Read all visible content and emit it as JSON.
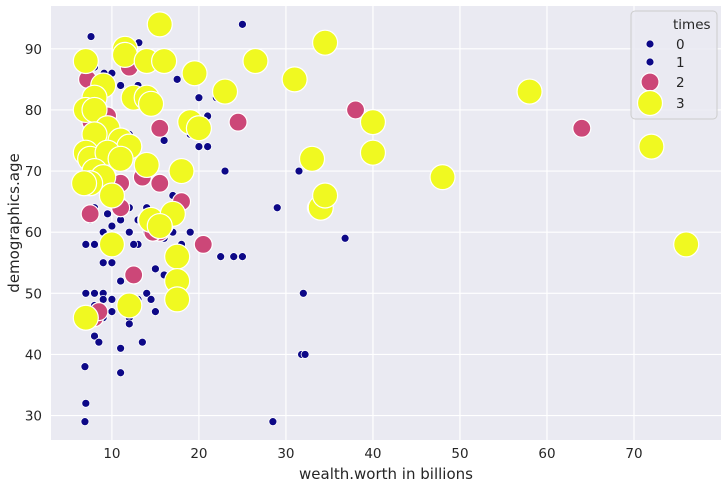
{
  "chart_data": {
    "type": "scatter",
    "xlabel": "wealth.worth in billions",
    "ylabel": "demographics.age",
    "xlim": [
      3,
      80
    ],
    "ylim": [
      26,
      97
    ],
    "xticks": [
      10,
      20,
      30,
      40,
      50,
      60,
      70
    ],
    "yticks": [
      30,
      40,
      50,
      60,
      70,
      80,
      90
    ],
    "grid": true,
    "legend": {
      "title": "times",
      "placement": "top-right",
      "entries": [
        "0",
        "1",
        "2",
        "3"
      ]
    },
    "series": [
      {
        "name": "0",
        "color": "#0d0887",
        "points": [
          [
            6.9,
            29
          ],
          [
            7,
            32
          ],
          [
            6.9,
            38
          ],
          [
            6.9,
            47
          ],
          [
            7.5,
            63
          ],
          [
            9.5,
            63
          ],
          [
            12,
            46
          ]
        ]
      },
      {
        "name": "1",
        "color": "#0d0887",
        "points": [
          [
            7.6,
            92
          ],
          [
            8,
            87
          ],
          [
            8.6,
            85
          ],
          [
            9.1,
            86
          ],
          [
            10,
            86
          ],
          [
            12,
            88
          ],
          [
            12.8,
            89
          ],
          [
            13.1,
            91
          ],
          [
            14,
            89
          ],
          [
            25,
            94
          ],
          [
            11,
            84
          ],
          [
            13,
            84
          ],
          [
            8.5,
            78
          ],
          [
            10,
            76
          ],
          [
            12,
            76
          ],
          [
            13,
            74
          ],
          [
            11,
            74
          ],
          [
            9,
            74
          ],
          [
            7,
            76
          ],
          [
            7.5,
            73
          ],
          [
            8,
            71
          ],
          [
            9,
            70
          ],
          [
            10,
            71
          ],
          [
            11,
            72
          ],
          [
            14,
            72
          ],
          [
            15,
            71
          ],
          [
            15.6,
            68
          ],
          [
            17,
            66
          ],
          [
            16,
            75
          ],
          [
            19,
            76
          ],
          [
            20,
            74
          ],
          [
            21,
            74
          ],
          [
            22,
            82
          ],
          [
            20,
            82
          ],
          [
            17.5,
            85
          ],
          [
            21,
            79
          ],
          [
            7,
            69
          ],
          [
            8,
            67
          ],
          [
            9,
            66
          ],
          [
            10,
            65
          ],
          [
            11,
            64
          ],
          [
            12,
            64
          ],
          [
            13,
            62
          ],
          [
            14,
            60
          ],
          [
            14,
            64
          ],
          [
            16,
            59
          ],
          [
            17,
            60
          ],
          [
            18,
            58
          ],
          [
            19,
            60
          ],
          [
            15,
            62
          ],
          [
            13,
            58
          ],
          [
            12,
            60
          ],
          [
            11,
            62
          ],
          [
            10,
            61
          ],
          [
            9,
            60
          ],
          [
            8,
            58
          ],
          [
            7,
            58
          ],
          [
            7.5,
            62
          ],
          [
            7,
            63
          ],
          [
            8,
            64
          ],
          [
            9,
            55
          ],
          [
            10,
            55
          ],
          [
            11,
            52
          ],
          [
            9,
            50
          ],
          [
            8,
            50
          ],
          [
            7,
            50
          ],
          [
            8,
            48
          ],
          [
            9,
            49
          ],
          [
            10,
            49
          ],
          [
            11,
            48
          ],
          [
            10,
            47
          ],
          [
            9,
            46
          ],
          [
            7,
            45
          ],
          [
            8,
            43
          ],
          [
            8.5,
            42
          ],
          [
            11,
            41
          ],
          [
            11,
            37
          ],
          [
            12,
            45
          ],
          [
            13,
            49
          ],
          [
            14,
            50
          ],
          [
            14.5,
            49
          ],
          [
            13.5,
            42
          ],
          [
            15,
            47
          ],
          [
            18,
            56
          ],
          [
            16,
            53
          ],
          [
            22.5,
            56
          ],
          [
            25,
            56
          ],
          [
            24,
            56
          ],
          [
            31.5,
            70
          ],
          [
            29,
            64
          ],
          [
            32,
            50
          ],
          [
            31.8,
            40
          ],
          [
            32.2,
            40
          ],
          [
            36.8,
            59
          ],
          [
            28.5,
            29
          ],
          [
            23,
            70
          ],
          [
            15,
            54
          ],
          [
            13,
            58
          ],
          [
            12.5,
            58
          ]
        ]
      },
      {
        "name": "2",
        "color": "#cc4778",
        "points": [
          [
            7.2,
            85
          ],
          [
            12,
            87
          ],
          [
            7.8,
            82
          ],
          [
            8.5,
            80
          ],
          [
            7.6,
            78
          ],
          [
            9.5,
            79
          ],
          [
            10,
            76
          ],
          [
            9,
            75
          ],
          [
            8,
            73
          ],
          [
            8.6,
            71
          ],
          [
            11,
            72
          ],
          [
            9.5,
            69
          ],
          [
            11,
            68
          ],
          [
            13.5,
            69
          ],
          [
            15.5,
            68
          ],
          [
            15.5,
            77
          ],
          [
            10.5,
            65
          ],
          [
            11,
            64
          ],
          [
            14,
            62
          ],
          [
            15.5,
            60
          ],
          [
            16,
            61
          ],
          [
            14.7,
            60
          ],
          [
            18,
            65
          ],
          [
            20.5,
            58
          ],
          [
            24.5,
            78
          ],
          [
            38,
            80
          ],
          [
            64,
            77
          ],
          [
            12.5,
            53
          ],
          [
            8,
            46
          ],
          [
            8.5,
            47
          ],
          [
            7.5,
            63
          ],
          [
            33.5,
            64
          ]
        ]
      },
      {
        "name": "3",
        "color": "#f0f921",
        "points": [
          [
            7,
            88
          ],
          [
            11.5,
            90
          ],
          [
            11.5,
            89
          ],
          [
            14,
            88
          ],
          [
            16,
            88
          ],
          [
            15.5,
            94
          ],
          [
            19.5,
            86
          ],
          [
            26.5,
            88
          ],
          [
            34.5,
            91
          ],
          [
            31,
            85
          ],
          [
            23,
            83
          ],
          [
            9,
            84
          ],
          [
            8,
            82
          ],
          [
            12.5,
            82
          ],
          [
            14,
            82
          ],
          [
            14.5,
            81
          ],
          [
            7,
            80
          ],
          [
            8,
            80
          ],
          [
            9.5,
            77
          ],
          [
            19,
            78
          ],
          [
            20,
            77
          ],
          [
            8,
            76
          ],
          [
            11,
            75
          ],
          [
            12,
            74
          ],
          [
            7,
            73
          ],
          [
            7.5,
            72
          ],
          [
            9.5,
            73
          ],
          [
            11,
            72
          ],
          [
            8,
            70
          ],
          [
            9,
            69
          ],
          [
            7.5,
            68
          ],
          [
            14,
            71
          ],
          [
            18,
            70
          ],
          [
            33,
            72
          ],
          [
            10,
            66
          ],
          [
            14.5,
            62
          ],
          [
            17,
            63
          ],
          [
            15.5,
            61
          ],
          [
            10,
            58
          ],
          [
            17.5,
            56
          ],
          [
            17.5,
            52
          ],
          [
            17.5,
            49
          ],
          [
            12,
            48
          ],
          [
            7,
            46
          ],
          [
            34,
            64
          ],
          [
            34.5,
            66
          ],
          [
            40,
            78
          ],
          [
            40,
            73
          ],
          [
            48,
            69
          ],
          [
            58,
            83
          ],
          [
            72,
            74
          ],
          [
            76,
            58
          ],
          [
            6.8,
            68
          ]
        ]
      }
    ]
  }
}
